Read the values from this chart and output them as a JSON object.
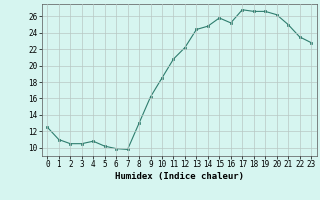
{
  "x": [
    0,
    1,
    2,
    3,
    4,
    5,
    6,
    7,
    8,
    9,
    10,
    11,
    12,
    13,
    14,
    15,
    16,
    17,
    18,
    19,
    20,
    21,
    22,
    23
  ],
  "y": [
    12.5,
    11.0,
    10.5,
    10.5,
    10.8,
    10.2,
    9.9,
    9.8,
    13.0,
    16.2,
    18.5,
    20.8,
    22.2,
    24.4,
    24.8,
    25.8,
    25.2,
    26.8,
    26.6,
    26.6,
    26.2,
    25.0,
    23.5,
    22.8
  ],
  "xlabel": "Humidex (Indice chaleur)",
  "ylabel_ticks": [
    10,
    12,
    14,
    16,
    18,
    20,
    22,
    24,
    26
  ],
  "xlim": [
    -0.5,
    23.5
  ],
  "ylim": [
    9.0,
    27.5
  ],
  "line_color": "#2e7d6e",
  "marker_color": "#2e7d6e",
  "bg_color": "#d6f5f0",
  "grid_color": "#b8c8c4",
  "tick_label_fontsize": 5.5,
  "xlabel_fontsize": 6.5
}
